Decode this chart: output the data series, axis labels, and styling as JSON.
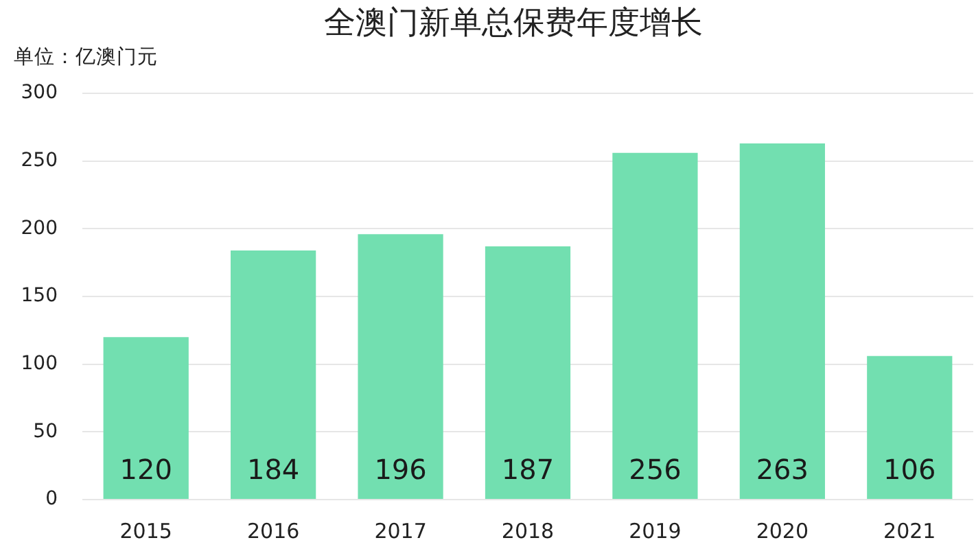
{
  "chart_data": {
    "type": "bar",
    "title": "全澳门新单总保费年度增长",
    "ylabel": "单位：亿澳门元",
    "categories": [
      "2015",
      "2016",
      "2017",
      "2018",
      "2019",
      "2020",
      "2021"
    ],
    "values": [
      120,
      184,
      196,
      187,
      256,
      263,
      106
    ],
    "color": "#72dfb0",
    "ylim": [
      0,
      300
    ],
    "yticks": [
      0,
      50,
      100,
      150,
      200,
      250,
      300
    ],
    "grid": "y",
    "data_labels": true
  }
}
